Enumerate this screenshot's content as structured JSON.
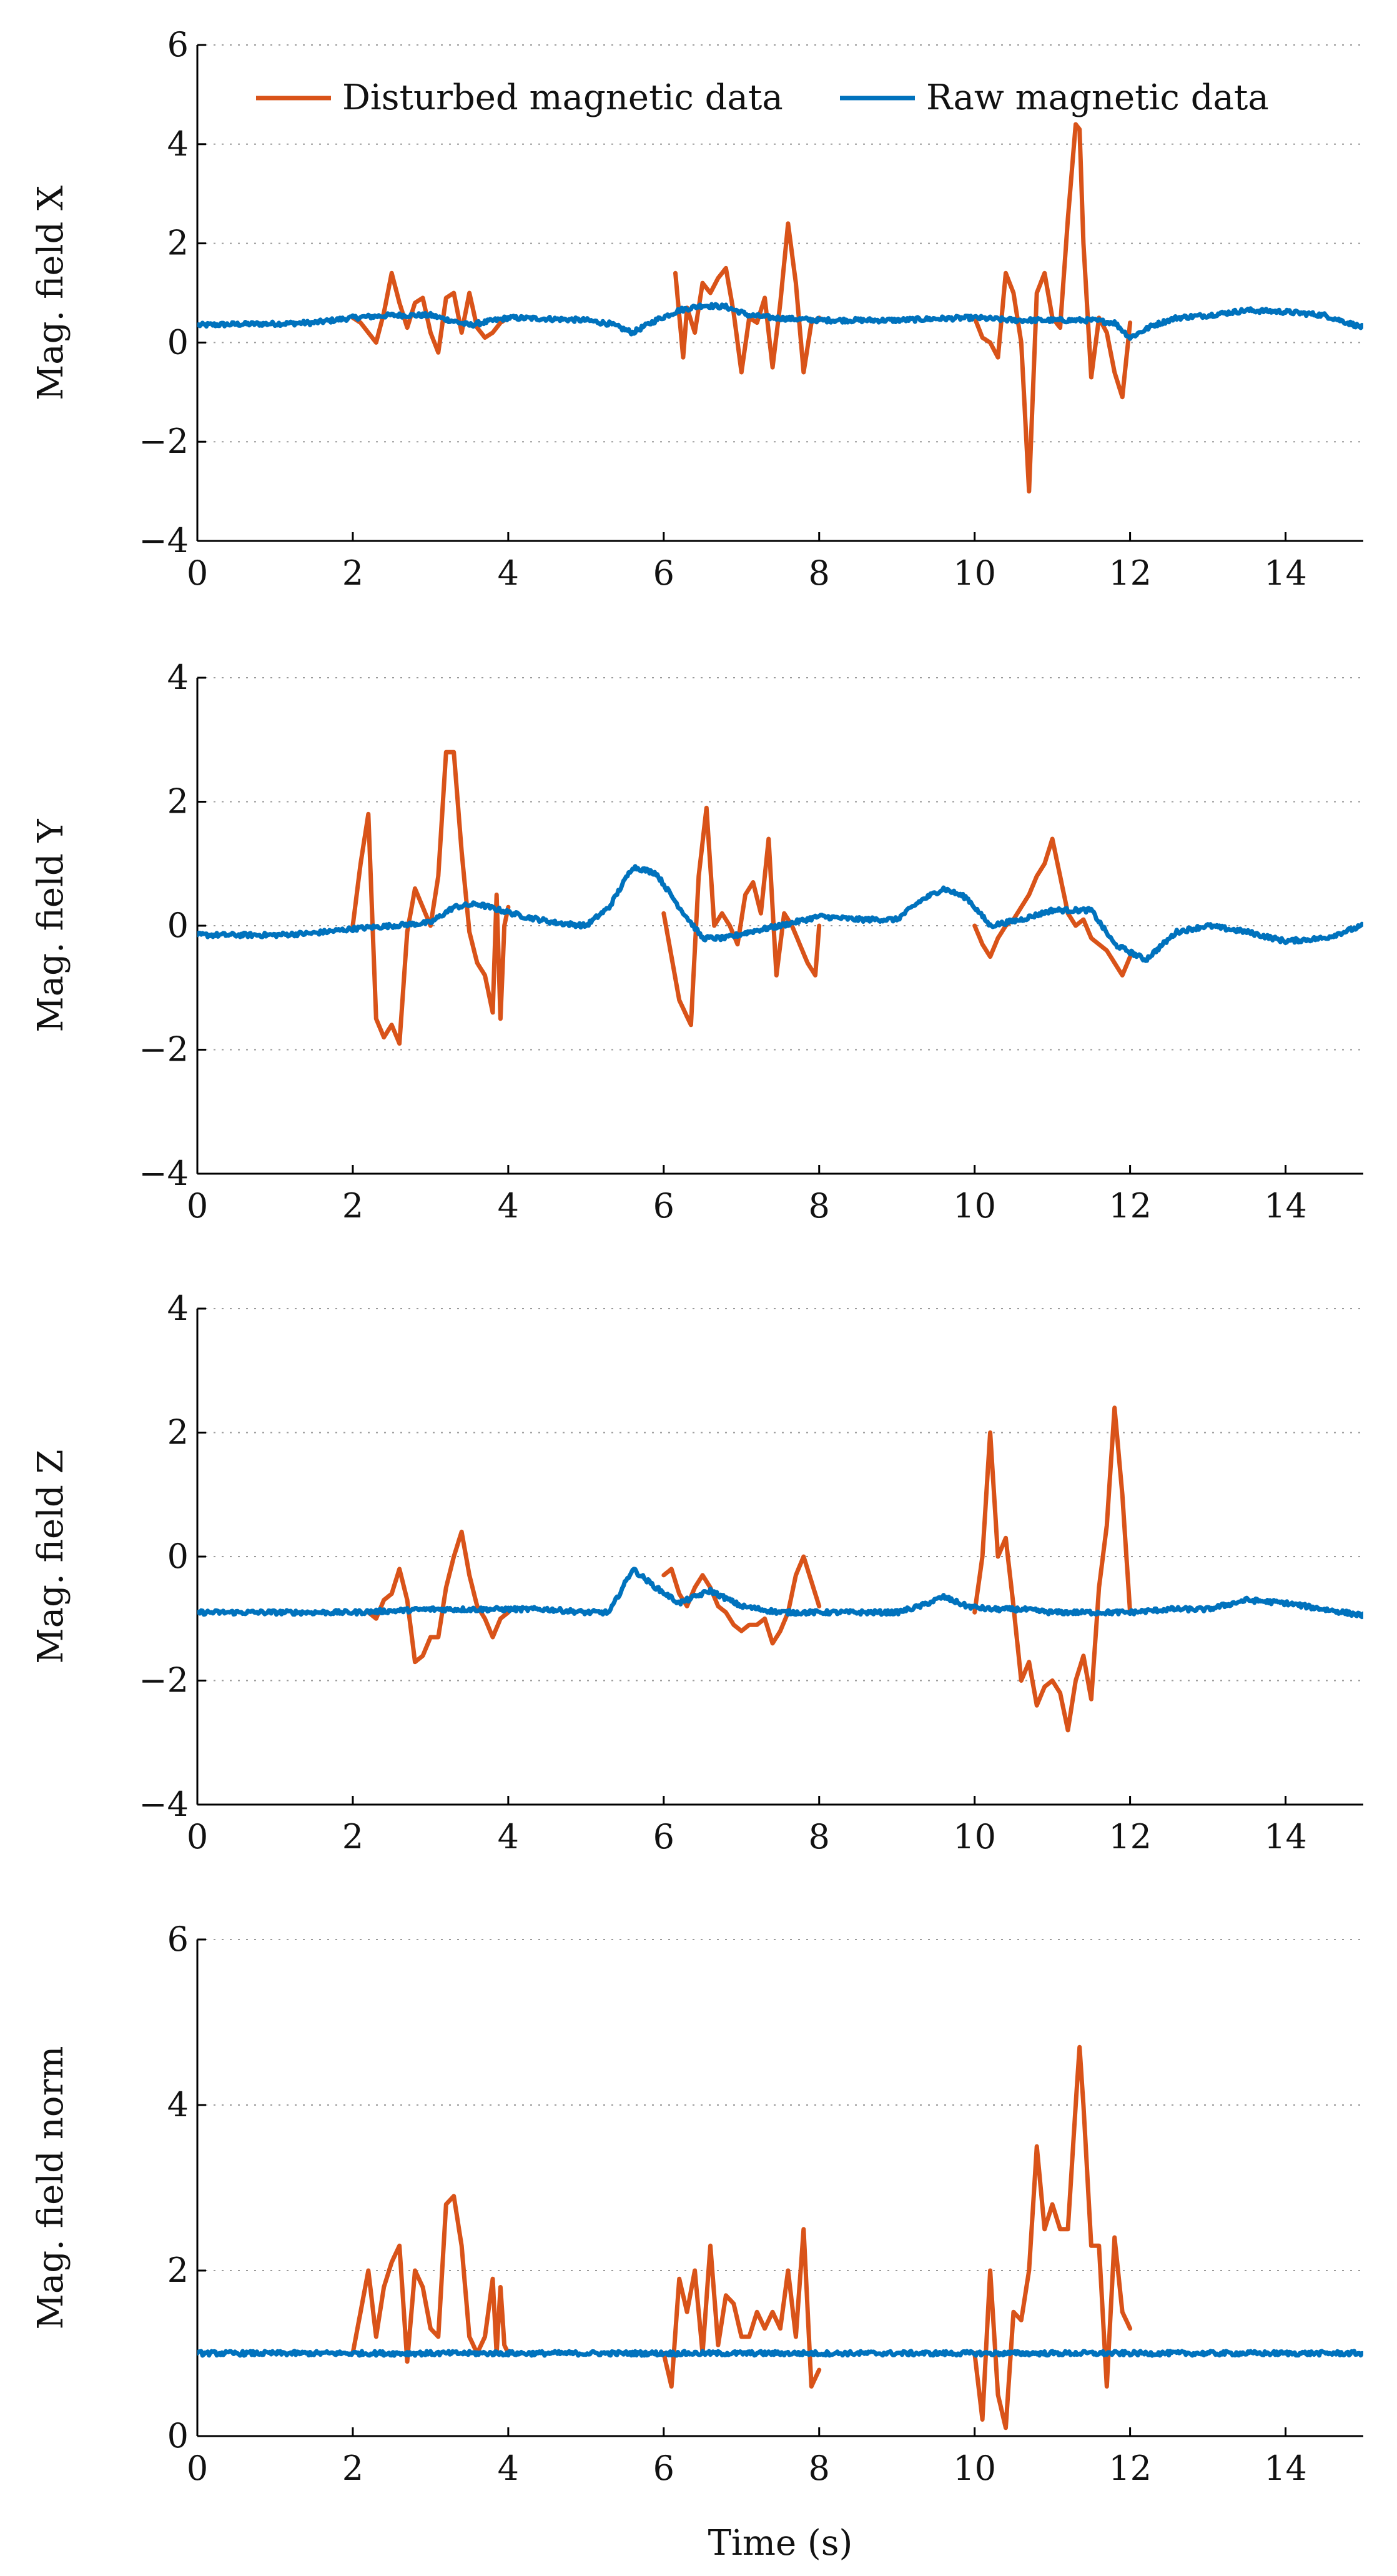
{
  "chart_data": [
    {
      "type": "line",
      "ylabel": "Mag. field X",
      "xlabel": "",
      "xlim": [
        0,
        15
      ],
      "ylim": [
        -4,
        6
      ],
      "xticks": [
        0,
        2,
        4,
        6,
        8,
        10,
        12,
        14
      ],
      "yticks": [
        -4,
        -2,
        0,
        2,
        4,
        6
      ],
      "xtick_labels": [
        "0",
        "2",
        "4",
        "6",
        "8",
        "10",
        "12",
        "14"
      ],
      "ytick_labels": [
        "−4",
        "−2",
        "0",
        "2",
        "4",
        "6"
      ],
      "grid": "horizontal dotted",
      "legend": {
        "position": "top",
        "entries": [
          "Disturbed magnetic data",
          "Raw magnetic data"
        ]
      },
      "series": [
        {
          "name": "Disturbed magnetic data",
          "color": "#D95319",
          "x": [
            2.0,
            2.1,
            2.2,
            2.3,
            2.4,
            2.5,
            2.6,
            2.7,
            2.8,
            2.9,
            3.0,
            3.1,
            3.2,
            3.3,
            3.4,
            3.5,
            3.6,
            3.7,
            3.8,
            3.9,
            4.0,
            null,
            6.15,
            6.25,
            6.3,
            6.4,
            6.5,
            6.6,
            6.7,
            6.8,
            6.9,
            7.0,
            7.1,
            7.2,
            7.3,
            7.4,
            7.5,
            7.6,
            7.7,
            7.8,
            7.9,
            8.0,
            null,
            10.0,
            10.1,
            10.2,
            10.3,
            10.4,
            10.5,
            10.6,
            10.7,
            10.75,
            10.8,
            10.9,
            11.0,
            11.1,
            11.2,
            11.3,
            11.35,
            11.4,
            11.5,
            11.6,
            11.7,
            11.8,
            11.9,
            12.0
          ],
          "y": [
            0.5,
            0.4,
            0.2,
            0.0,
            0.6,
            1.4,
            0.8,
            0.3,
            0.8,
            0.9,
            0.2,
            -0.2,
            0.9,
            1.0,
            0.2,
            1.0,
            0.3,
            0.1,
            0.2,
            0.4,
            0.5,
            null,
            1.4,
            -0.3,
            0.7,
            0.2,
            1.2,
            1.0,
            1.3,
            1.5,
            0.6,
            -0.6,
            0.5,
            0.4,
            0.9,
            -0.5,
            0.8,
            2.4,
            1.2,
            -0.6,
            0.4,
            0.5,
            null,
            0.5,
            0.1,
            0.0,
            -0.3,
            1.4,
            1.0,
            0.0,
            -3.0,
            -1.0,
            1.0,
            1.4,
            0.5,
            0.3,
            2.5,
            4.4,
            4.3,
            2.0,
            -0.7,
            0.5,
            0.2,
            -0.6,
            -1.1,
            0.4
          ]
        },
        {
          "name": "Raw magnetic data",
          "color": "#0072BD",
          "x": [
            0,
            0.5,
            1,
            1.5,
            2,
            2.5,
            3,
            3.5,
            4,
            4.5,
            5,
            5.3,
            5.6,
            5.9,
            6.2,
            6.5,
            6.8,
            7.1,
            7.4,
            8,
            8.5,
            9,
            9.5,
            10,
            10.5,
            11,
            11.5,
            11.8,
            12.0,
            12.3,
            12.6,
            13,
            13.5,
            14,
            14.5,
            15
          ],
          "y": [
            0.35,
            0.37,
            0.38,
            0.4,
            0.5,
            0.55,
            0.55,
            0.35,
            0.5,
            0.48,
            0.45,
            0.38,
            0.2,
            0.45,
            0.65,
            0.75,
            0.72,
            0.55,
            0.5,
            0.45,
            0.45,
            0.45,
            0.48,
            0.5,
            0.45,
            0.45,
            0.45,
            0.4,
            0.1,
            0.35,
            0.5,
            0.55,
            0.65,
            0.62,
            0.55,
            0.3
          ]
        }
      ]
    },
    {
      "type": "line",
      "ylabel": "Mag. field Y",
      "xlabel": "",
      "xlim": [
        0,
        15
      ],
      "ylim": [
        -4,
        4
      ],
      "xticks": [
        0,
        2,
        4,
        6,
        8,
        10,
        12,
        14
      ],
      "yticks": [
        -4,
        -2,
        0,
        2,
        4
      ],
      "xtick_labels": [
        "0",
        "2",
        "4",
        "6",
        "8",
        "10",
        "12",
        "14"
      ],
      "ytick_labels": [
        "−4",
        "−2",
        "0",
        "2",
        "4"
      ],
      "grid": "horizontal dotted",
      "series": [
        {
          "name": "Disturbed magnetic data",
          "color": "#D95319",
          "x": [
            2.0,
            2.1,
            2.2,
            2.3,
            2.4,
            2.5,
            2.6,
            2.7,
            2.8,
            2.9,
            3.0,
            3.1,
            3.2,
            3.3,
            3.4,
            3.5,
            3.6,
            3.7,
            3.8,
            3.85,
            3.9,
            3.95,
            4.0,
            null,
            6.0,
            6.2,
            6.35,
            6.45,
            6.55,
            6.65,
            6.75,
            6.85,
            6.95,
            7.05,
            7.15,
            7.25,
            7.35,
            7.45,
            7.55,
            7.65,
            7.75,
            7.85,
            7.95,
            8.0
          ],
          "y": [
            0.0,
            1.0,
            1.8,
            -1.5,
            -1.8,
            -1.6,
            -1.9,
            -0.1,
            0.6,
            0.3,
            0.0,
            0.8,
            2.8,
            2.8,
            1.2,
            -0.1,
            -0.6,
            -0.8,
            -1.4,
            0.5,
            -1.5,
            0.0,
            0.3,
            null,
            0.2,
            -1.2,
            -1.6,
            0.8,
            1.9,
            0.0,
            0.2,
            0.0,
            -0.3,
            0.5,
            0.7,
            0.2,
            1.4,
            -0.8,
            0.2,
            0.0,
            -0.3,
            -0.6,
            -0.8,
            0.0
          ]
        },
        {
          "name": "Disturbed magnetic data (segment 3)",
          "color": "#D95319",
          "x": [
            10.0,
            10.1,
            10.2,
            10.3,
            10.4,
            10.5,
            10.6,
            10.7,
            10.8,
            10.9,
            11.0,
            11.1,
            11.2,
            11.3,
            11.4,
            11.5,
            11.6,
            11.7,
            11.8,
            11.9,
            12.0
          ],
          "y": [
            0.0,
            -0.3,
            -0.5,
            -0.2,
            0.0,
            0.1,
            0.3,
            0.5,
            0.8,
            1.0,
            1.4,
            0.8,
            0.2,
            0.0,
            0.1,
            -0.2,
            -0.3,
            -0.4,
            -0.6,
            -0.8,
            -0.5
          ]
        },
        {
          "name": "Raw magnetic data",
          "color": "#0072BD",
          "x": [
            0,
            0.5,
            1,
            1.5,
            2,
            2.5,
            3,
            3.3,
            3.6,
            3.9,
            4.2,
            4.6,
            5.0,
            5.3,
            5.6,
            5.9,
            6.2,
            6.5,
            6.8,
            7.1,
            7.5,
            8,
            8.5,
            9,
            9.3,
            9.6,
            9.9,
            10.2,
            10.6,
            11,
            11.5,
            11.8,
            12.2,
            12.6,
            13,
            13.5,
            14,
            14.5,
            15
          ],
          "y": [
            -0.15,
            -0.15,
            -0.15,
            -0.12,
            -0.05,
            0.0,
            0.05,
            0.3,
            0.35,
            0.25,
            0.15,
            0.05,
            0.0,
            0.3,
            0.95,
            0.85,
            0.3,
            -0.2,
            -0.2,
            -0.1,
            0.0,
            0.15,
            0.1,
            0.1,
            0.4,
            0.6,
            0.45,
            0.0,
            0.1,
            0.25,
            0.25,
            -0.3,
            -0.55,
            -0.1,
            0.0,
            -0.1,
            -0.25,
            -0.2,
            0.0
          ]
        }
      ]
    },
    {
      "type": "line",
      "ylabel": "Mag. field Z",
      "xlabel": "",
      "xlim": [
        0,
        15
      ],
      "ylim": [
        -4,
        4
      ],
      "xticks": [
        0,
        2,
        4,
        6,
        8,
        10,
        12,
        14
      ],
      "yticks": [
        -4,
        -2,
        0,
        2,
        4
      ],
      "xtick_labels": [
        "0",
        "2",
        "4",
        "6",
        "8",
        "10",
        "12",
        "14"
      ],
      "ytick_labels": [
        "−4",
        "−2",
        "0",
        "2",
        "4"
      ],
      "grid": "horizontal dotted",
      "series": [
        {
          "name": "Disturbed magnetic data",
          "color": "#D95319",
          "x": [
            2.2,
            2.3,
            2.4,
            2.5,
            2.6,
            2.7,
            2.8,
            2.9,
            3.0,
            3.1,
            3.2,
            3.3,
            3.4,
            3.5,
            3.6,
            3.7,
            3.8,
            3.9,
            4.0,
            null,
            6.0,
            6.1,
            6.2,
            6.3,
            6.4,
            6.5,
            6.6,
            6.7,
            6.8,
            6.9,
            7.0,
            7.1,
            7.2,
            7.3,
            7.4,
            7.5,
            7.6,
            7.7,
            7.8,
            7.9,
            8.0
          ],
          "y": [
            -0.9,
            -1.0,
            -0.7,
            -0.6,
            -0.2,
            -0.7,
            -1.7,
            -1.6,
            -1.3,
            -1.3,
            -0.5,
            0.0,
            0.4,
            -0.3,
            -0.8,
            -1.0,
            -1.3,
            -1.0,
            -0.9,
            null,
            -0.3,
            -0.2,
            -0.6,
            -0.8,
            -0.5,
            -0.3,
            -0.5,
            -0.8,
            -0.9,
            -1.1,
            -1.2,
            -1.1,
            -1.1,
            -1.0,
            -1.4,
            -1.2,
            -0.9,
            -0.3,
            0.0,
            -0.4,
            -0.8
          ]
        },
        {
          "name": "Disturbed magnetic data (segment 3)",
          "color": "#D95319",
          "x": [
            10.0,
            10.1,
            10.2,
            10.3,
            10.4,
            10.5,
            10.6,
            10.7,
            10.8,
            10.9,
            11.0,
            11.1,
            11.2,
            11.3,
            11.4,
            11.5,
            11.6,
            11.7,
            11.8,
            11.9,
            12.0
          ],
          "y": [
            -0.9,
            0.0,
            2.0,
            0.0,
            0.3,
            -0.8,
            -2.0,
            -1.7,
            -2.4,
            -2.1,
            -2.0,
            -2.2,
            -2.8,
            -2.0,
            -1.6,
            -2.3,
            -0.5,
            0.5,
            2.4,
            1.0,
            -0.9
          ]
        },
        {
          "name": "Raw magnetic data",
          "color": "#0072BD",
          "x": [
            0,
            1,
            2,
            3,
            4,
            4.5,
            5,
            5.3,
            5.6,
            5.9,
            6.2,
            6.6,
            7,
            7.5,
            8,
            8.5,
            9,
            9.3,
            9.6,
            9.9,
            10.2,
            10.6,
            11,
            12,
            12.5,
            13,
            13.5,
            14,
            14.5,
            15
          ],
          "y": [
            -0.9,
            -0.9,
            -0.9,
            -0.85,
            -0.85,
            -0.85,
            -0.9,
            -0.9,
            -0.2,
            -0.5,
            -0.75,
            -0.55,
            -0.8,
            -0.9,
            -0.9,
            -0.9,
            -0.9,
            -0.8,
            -0.65,
            -0.8,
            -0.85,
            -0.85,
            -0.9,
            -0.9,
            -0.85,
            -0.85,
            -0.7,
            -0.75,
            -0.85,
            -0.95
          ]
        }
      ]
    },
    {
      "type": "line",
      "ylabel": "Mag. field norm",
      "xlabel": "Time (s)",
      "xlim": [
        0,
        15
      ],
      "ylim": [
        0,
        6
      ],
      "xticks": [
        0,
        2,
        4,
        6,
        8,
        10,
        12,
        14
      ],
      "yticks": [
        0,
        2,
        4,
        6
      ],
      "xtick_labels": [
        "0",
        "2",
        "4",
        "6",
        "8",
        "10",
        "12",
        "14"
      ],
      "ytick_labels": [
        "0",
        "2",
        "4",
        "6"
      ],
      "grid": "horizontal dotted",
      "series": [
        {
          "name": "Disturbed magnetic data",
          "color": "#D95319",
          "x": [
            2.0,
            2.1,
            2.2,
            2.3,
            2.4,
            2.5,
            2.6,
            2.7,
            2.8,
            2.9,
            3.0,
            3.1,
            3.2,
            3.3,
            3.4,
            3.5,
            3.6,
            3.7,
            3.8,
            3.85,
            3.9,
            3.95,
            4.0,
            null,
            6.0,
            6.1,
            6.2,
            6.3,
            6.4,
            6.5,
            6.6,
            6.7,
            6.8,
            6.9,
            7.0,
            7.1,
            7.2,
            7.3,
            7.4,
            7.5,
            7.6,
            7.7,
            7.8,
            7.9,
            8.0
          ],
          "y": [
            1.0,
            1.5,
            2.0,
            1.2,
            1.8,
            2.1,
            2.3,
            0.9,
            2.0,
            1.8,
            1.3,
            1.2,
            2.8,
            2.9,
            2.3,
            1.2,
            1.0,
            1.2,
            1.9,
            1.0,
            1.8,
            1.1,
            1.0,
            null,
            1.0,
            0.6,
            1.9,
            1.5,
            2.0,
            1.0,
            2.3,
            1.1,
            1.7,
            1.6,
            1.2,
            1.2,
            1.5,
            1.3,
            1.5,
            1.3,
            2.0,
            1.2,
            2.5,
            0.6,
            0.8
          ]
        },
        {
          "name": "Disturbed magnetic data (segment 3)",
          "color": "#D95319",
          "x": [
            10.0,
            10.1,
            10.2,
            10.3,
            10.4,
            10.5,
            10.6,
            10.7,
            10.8,
            10.9,
            11.0,
            11.1,
            11.2,
            11.3,
            11.35,
            11.4,
            11.5,
            11.6,
            11.7,
            11.8,
            11.9,
            12.0
          ],
          "y": [
            1.0,
            0.2,
            2.0,
            0.5,
            0.1,
            1.5,
            1.4,
            2.0,
            3.5,
            2.5,
            2.8,
            2.5,
            2.5,
            4.0,
            4.7,
            4.0,
            2.3,
            2.3,
            0.6,
            2.4,
            1.5,
            1.3
          ]
        },
        {
          "name": "Raw magnetic data",
          "color": "#0072BD",
          "x": [
            0,
            1,
            2,
            3,
            4,
            5,
            6,
            7,
            8,
            9,
            10,
            11,
            12,
            13,
            14,
            15
          ],
          "y": [
            1.0,
            1.0,
            1.0,
            1.0,
            1.0,
            1.0,
            1.0,
            1.0,
            1.0,
            1.0,
            1.0,
            1.0,
            1.0,
            1.0,
            1.0,
            1.0
          ]
        }
      ]
    }
  ]
}
